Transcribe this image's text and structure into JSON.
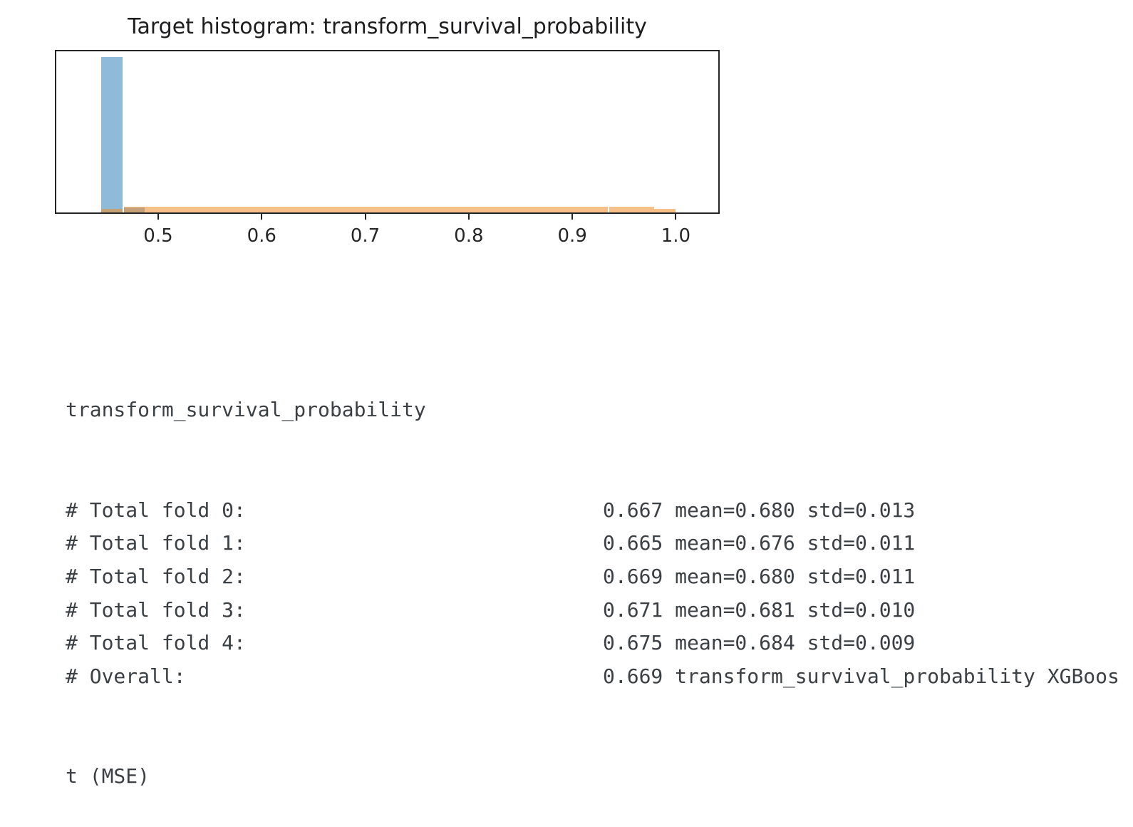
{
  "page": {
    "background": "#ffffff"
  },
  "chart_data": {
    "type": "bar",
    "subtype": "histogram",
    "title": "Target histogram: transform_survival_probability",
    "xlabel": "",
    "ylabel": "",
    "xlim": [
      0.4016,
      1.041
    ],
    "x_tick_values": [
      0.5,
      0.6,
      0.7,
      0.8,
      0.9,
      1.0
    ],
    "x_tick_labels": [
      "0.5",
      "0.6",
      "0.7",
      "0.8",
      "0.9",
      "1.0"
    ],
    "grid": false,
    "legend": false,
    "frame_color": "#242424",
    "y_axis_ticks": "none shown, relative heights only",
    "series": [
      {
        "name": "histogram-blue",
        "color": "rgba(31,119,180,0.5)",
        "bars": [
          {
            "x0": 0.4447,
            "x1": 0.4654,
            "h": 0.965
          },
          {
            "x0": 0.4672,
            "x1": 0.4872,
            "h": 0.031
          }
        ]
      },
      {
        "name": "histogram-orange",
        "color": "rgba(242,140,40,0.55)",
        "bars": [
          {
            "x0": 0.4447,
            "x1": 0.4654,
            "h": 0.022
          },
          {
            "x0": 0.4672,
            "x1": 0.9344,
            "h": 0.0376
          },
          {
            "x0": 0.9356,
            "x1": 0.9791,
            "h": 0.0376
          },
          {
            "x0": 0.9791,
            "x1": 0.9997,
            "h": 0.02
          }
        ]
      }
    ]
  },
  "output": {
    "header": "transform_survival_probability",
    "rows": [
      {
        "label": "# Total fold 0:",
        "value": "0.667 mean=0.680 std=0.013"
      },
      {
        "label": "# Total fold 1:",
        "value": "0.665 mean=0.676 std=0.011"
      },
      {
        "label": "# Total fold 2:",
        "value": "0.669 mean=0.680 std=0.011"
      },
      {
        "label": "# Total fold 3:",
        "value": "0.671 mean=0.681 std=0.010"
      },
      {
        "label": "# Total fold 4:",
        "value": "0.675 mean=0.684 std=0.009"
      },
      {
        "label": "# Overall:",
        "value": "0.669 transform_survival_probability XGBoos"
      }
    ],
    "wrap_line": "t (MSE)",
    "text_color": "#3b4045"
  }
}
